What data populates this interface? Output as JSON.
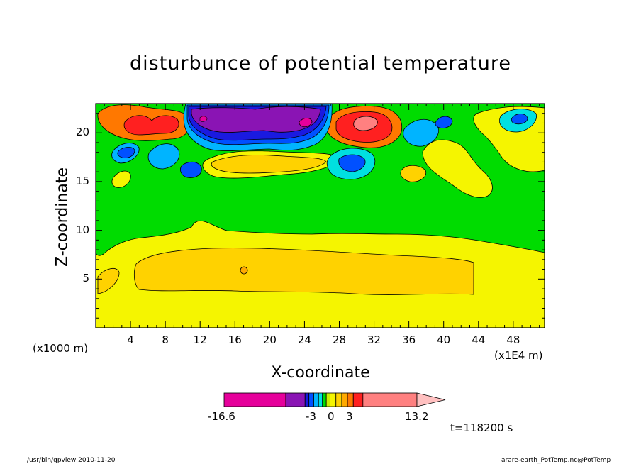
{
  "chart_data": {
    "type": "heatmap",
    "title": "disturbunce of potential temperature",
    "xlabel": "X-coordinate",
    "ylabel": "Z-coordinate",
    "x_unit_label": "(x1000 m)",
    "x_scale_label": "(x1E4 m)",
    "x_ticks": [
      "4",
      "8",
      "12",
      "16",
      "20",
      "24",
      "28",
      "32",
      "36",
      "40",
      "44",
      "48"
    ],
    "y_ticks": [
      "5",
      "10",
      "15",
      "20"
    ],
    "xlim": [
      0,
      51.6
    ],
    "ylim": [
      0,
      23
    ],
    "colorbar": {
      "min_label": "-16.6",
      "max_label": "13.2",
      "mid_labels": [
        "-3",
        "0",
        "3"
      ],
      "colors": [
        "#e6009b",
        "#8a14b4",
        "#1a1ae0",
        "#0050ff",
        "#00b4ff",
        "#00e0e0",
        "#00dc00",
        "#c8f000",
        "#f5f500",
        "#ffd200",
        "#ffaa00",
        "#ff7800",
        "#ff2020",
        "#ff8080",
        "#ffc0c0"
      ]
    },
    "time_label": "t=118200 s"
  },
  "footer": {
    "left": "/usr/bin/gpview   2010-11-20",
    "right": "arare-earth_PotTemp.nc@PotTemp"
  }
}
